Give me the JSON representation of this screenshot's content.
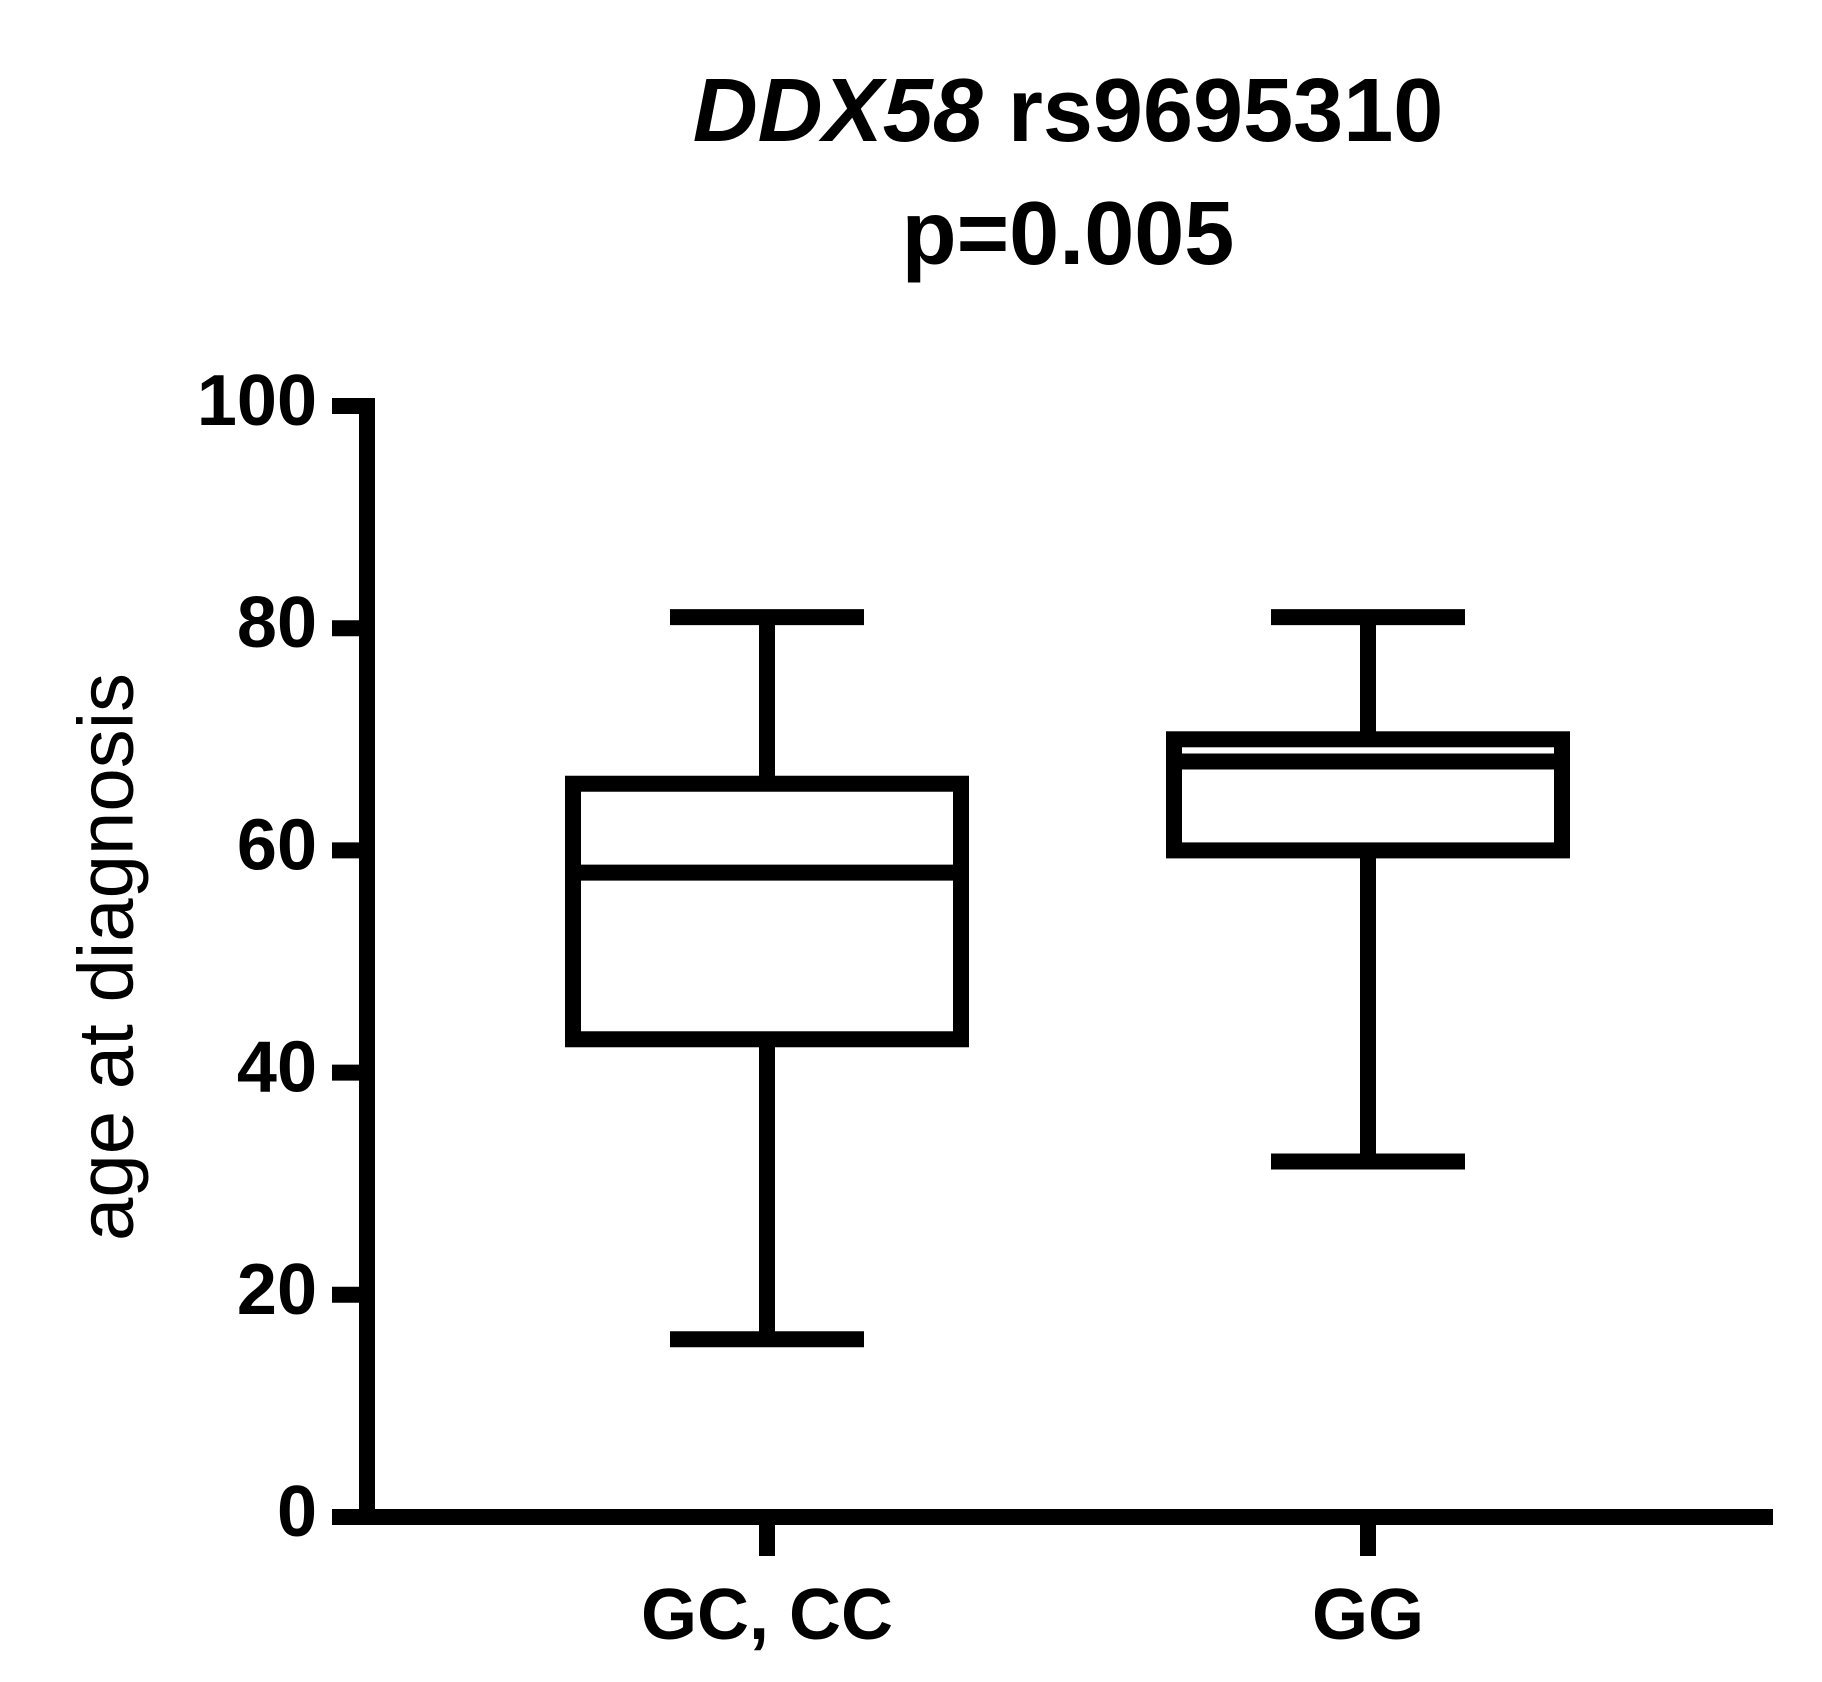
{
  "chart_data": {
    "type": "box",
    "title_gene": "DDX58",
    "title": "rs9695310",
    "subtitle": "p=0.005",
    "y_label": "age at diagnosis",
    "categories": [
      "GC, CC",
      "GG"
    ],
    "min": [
      16,
      32
    ],
    "q1": [
      43,
      60
    ],
    "median": [
      58,
      68
    ],
    "q3": [
      66,
      70
    ],
    "max": [
      81,
      81
    ],
    "color": "#000000",
    "ylim": [
      0,
      100
    ],
    "yticks": [
      0,
      20,
      40,
      60,
      80,
      100
    ]
  }
}
